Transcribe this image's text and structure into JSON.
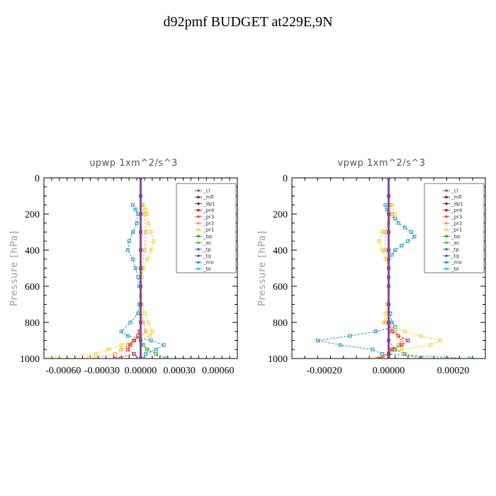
{
  "title": "d92pmf  BUDGET at229E,9N",
  "legend_entries": [
    {
      "name": "_cl",
      "color": "#8b4a9b"
    },
    {
      "name": "_mfl",
      "color": "#7a1060"
    },
    {
      "name": "_dp1",
      "color": "#a0102a"
    },
    {
      "name": "_pr4",
      "color": "#d01030"
    },
    {
      "name": "_pr3",
      "color": "#e84060"
    },
    {
      "name": "_pr2",
      "color": "#f0a030"
    },
    {
      "name": "_pr1",
      "color": "#f0d020"
    },
    {
      "name": "_bp",
      "color": "#20a020"
    },
    {
      "name": "_ac",
      "color": "#40c040"
    },
    {
      "name": "_tp",
      "color": "#3070e0"
    },
    {
      "name": "_tq",
      "color": "#5050c0"
    },
    {
      "name": "_mo",
      "color": "#2090c0"
    },
    {
      "name": "_bt",
      "color": "#00d0e0"
    }
  ],
  "chart_data": [
    {
      "type": "line",
      "title": "upwp   1xm^2/s^3",
      "ylabel": "Pressure  [hPa]",
      "xlabel": "",
      "xlim": [
        -0.00075,
        0.00075
      ],
      "ylim": [
        1000,
        0
      ],
      "xticks": [
        -0.0006,
        -0.0003,
        0.0,
        0.0003,
        0.0006
      ],
      "xtick_labels": [
        "-0.00060",
        "-0.00030",
        "0.00000",
        "0.00030",
        "0.00060"
      ],
      "yticks": [
        0,
        200,
        400,
        600,
        800,
        1000
      ],
      "legend": "top-right",
      "series": [
        {
          "name": "_mo",
          "pressure": [
            150,
            175,
            200,
            250,
            300,
            350,
            400,
            450,
            500,
            550,
            600,
            650,
            700,
            750,
            800,
            850,
            875,
            900,
            925,
            950,
            975,
            1000
          ],
          "values": [
            -6e-05,
            -4e-05,
            -2e-05,
            -3e-05,
            -6e-05,
            -9e-05,
            -0.0001,
            -6e-05,
            -4e-05,
            -2e-05,
            -1e-05,
            0,
            -1e-05,
            -2e-05,
            -8e-05,
            -0.00015,
            -0.0001,
            8e-05,
            0.00018,
            0.00012,
            4e-05,
            2e-05
          ]
        },
        {
          "name": "_pr1",
          "pressure": [
            150,
            175,
            200,
            250,
            300,
            350,
            400,
            450,
            500,
            550,
            600,
            650,
            700,
            750,
            800,
            850,
            875,
            900,
            925,
            950,
            975,
            1000
          ],
          "values": [
            2e-05,
            4e-05,
            5e-05,
            6e-05,
            8e-05,
            0.0001,
            8e-05,
            5e-05,
            2e-05,
            1e-05,
            0,
            0,
            1e-05,
            3e-05,
            6e-05,
            9e-05,
            7e-05,
            -6e-05,
            -0.00015,
            -0.00025,
            -0.00035,
            -0.0009
          ]
        },
        {
          "name": "_pr2",
          "pressure": [
            150,
            200,
            300,
            400,
            500,
            600,
            700,
            800,
            850,
            900,
            925,
            950,
            975,
            1000
          ],
          "values": [
            1e-05,
            3e-05,
            4e-05,
            3e-05,
            1e-05,
            0,
            0,
            2e-05,
            4e-05,
            -5e-05,
            -0.0001,
            -0.00015,
            -0.0002,
            -0.0004
          ]
        },
        {
          "name": "_pr4",
          "pressure": [
            800,
            850,
            875,
            900,
            925,
            950,
            975,
            1000
          ],
          "values": [
            0,
            -1e-05,
            -2e-05,
            -5e-05,
            -8e-05,
            -0.0001,
            -5e-05,
            -0.0002
          ]
        },
        {
          "name": "_bp",
          "pressure": [
            900,
            925,
            950,
            975,
            1000
          ],
          "values": [
            0,
            2e-05,
            5e-05,
            0.00012,
            0.0002
          ]
        },
        {
          "name": "_mfl",
          "pressure": [
            0,
            100,
            200,
            300,
            400,
            500,
            600,
            700,
            800,
            900,
            1000
          ],
          "values": [
            0,
            0,
            0,
            0,
            0,
            0,
            0,
            0,
            0,
            0,
            0
          ]
        },
        {
          "name": "_cl",
          "pressure": [
            0,
            100,
            200,
            300,
            400,
            500,
            600,
            700,
            800,
            900,
            1000
          ],
          "values": [
            0,
            0,
            0,
            0,
            0,
            0,
            0,
            0,
            0,
            0,
            0
          ]
        }
      ]
    },
    {
      "type": "line",
      "title": "vpwp   1xm^2/s^3",
      "ylabel": "Pressure  [hPa]",
      "xlabel": "",
      "xlim": [
        -0.0003,
        0.0003
      ],
      "ylim": [
        1000,
        0
      ],
      "xticks": [
        -0.0002,
        0.0,
        0.0002
      ],
      "xtick_labels": [
        "-0.00020",
        "0.00000",
        "0.00020"
      ],
      "yticks": [
        0,
        200,
        400,
        600,
        800,
        1000
      ],
      "legend": "top-right",
      "series": [
        {
          "name": "_mo",
          "pressure": [
            150,
            175,
            200,
            225,
            250,
            275,
            300,
            325,
            350,
            375,
            400,
            425,
            450,
            500,
            550,
            600,
            700,
            750,
            800,
            825,
            850,
            875,
            900,
            925,
            950,
            975,
            1000
          ],
          "values": [
            -1e-05,
            -5e-06,
            0,
            2e-05,
            3e-05,
            5e-05,
            7e-05,
            8e-05,
            6e-05,
            4e-05,
            2e-05,
            1e-05,
            0,
            0,
            0,
            0,
            0,
            5e-06,
            1e-05,
            2e-05,
            -4e-05,
            -0.00012,
            -0.00022,
            -0.00015,
            -5e-05,
            -2e-05,
            0.00025
          ]
        },
        {
          "name": "_pr1",
          "pressure": [
            150,
            200,
            250,
            300,
            350,
            400,
            450,
            500,
            600,
            700,
            750,
            800,
            850,
            875,
            900,
            925,
            950,
            975,
            1000
          ],
          "values": [
            1e-05,
            2e-05,
            0,
            -2e-05,
            -3e-05,
            -2e-05,
            -1e-05,
            0,
            0,
            -5e-06,
            -1e-05,
            -1.5e-05,
            5e-05,
            0.0001,
            0.00016,
            0.00013,
            4e-05,
            0,
            -4e-05
          ]
        },
        {
          "name": "_pr2",
          "pressure": [
            150,
            200,
            300,
            400,
            500,
            700,
            800,
            850,
            900,
            925,
            950,
            975,
            1000
          ],
          "values": [
            5e-06,
            1e-05,
            -1e-05,
            -1e-05,
            0,
            0,
            -1e-05,
            2e-05,
            4e-05,
            3e-05,
            1e-05,
            0,
            -2e-05
          ]
        },
        {
          "name": "_pr4",
          "pressure": [
            800,
            850,
            875,
            900,
            925,
            950,
            975,
            1000
          ],
          "values": [
            0,
            1e-05,
            3e-05,
            6e-05,
            4e-05,
            1e-05,
            0,
            -3e-05
          ]
        },
        {
          "name": "_bp",
          "pressure": [
            900,
            950,
            975,
            1000
          ],
          "values": [
            0,
            2e-05,
            5e-05,
            0.0001
          ]
        },
        {
          "name": "_mfl",
          "pressure": [
            0,
            100,
            200,
            300,
            400,
            500,
            600,
            700,
            800,
            900,
            1000
          ],
          "values": [
            0,
            0,
            0,
            0,
            0,
            0,
            0,
            0,
            0,
            0,
            0
          ]
        },
        {
          "name": "_cl",
          "pressure": [
            0,
            100,
            200,
            300,
            400,
            500,
            600,
            700,
            800,
            900,
            1000
          ],
          "values": [
            0,
            0,
            0,
            0,
            0,
            0,
            0,
            0,
            0,
            0,
            0
          ]
        }
      ]
    }
  ]
}
